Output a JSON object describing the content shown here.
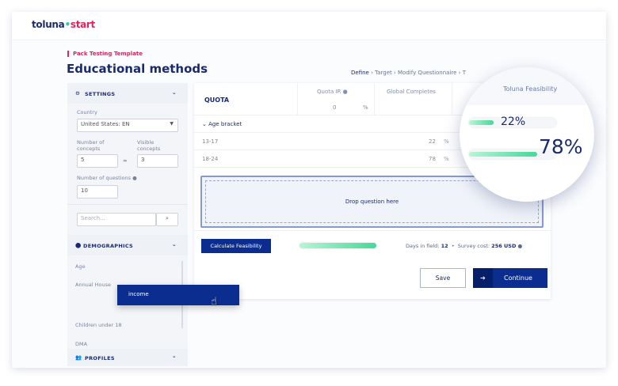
{
  "header": {
    "logo_left": "toluna",
    "logo_right": "start"
  },
  "page": {
    "template": "Pack Testing Template",
    "title": "Educational methods"
  },
  "steps": [
    "Define",
    "Target",
    "Modify Questionnaire",
    "T"
  ],
  "settings": {
    "heading": "SETTINGS",
    "country_label": "Country",
    "country_value": "United States: EN",
    "num_concepts_label": "Number of concepts",
    "num_concepts_value": "5",
    "visible_concepts_label": "Visible concepts",
    "visible_concepts_value": "3",
    "num_questions_label": "Number of questions",
    "num_questions_value": "10"
  },
  "search": {
    "placeholder": "Search..."
  },
  "demographics": {
    "heading": "DEMOGRAPHICS",
    "items": [
      "Age",
      "Annual House",
      "Children under 18",
      "DMA"
    ]
  },
  "profiles": {
    "heading": "PROFILES"
  },
  "drag_item": "income",
  "quota": {
    "heading": "QUOTA",
    "col_ir": "Quota IR",
    "ir_value": "0",
    "pct": "%",
    "col_global": "Global Completes",
    "group": "Age bracket",
    "rows": [
      {
        "label": "13-17",
        "value": "22",
        "pct": "%",
        "fill": 0.22
      },
      {
        "label": "18-24",
        "value": "78",
        "pct": "%",
        "fill": 0.78
      }
    ]
  },
  "drop_zone": "Drop question here",
  "footer": {
    "calc_button": "Calculate Feasibility",
    "overall_fill": 1.0,
    "days_label": "Days in field:",
    "days_value": "12",
    "cost_label": "Survey cost:",
    "cost_value": "256 USD"
  },
  "actions": {
    "save": "Save",
    "continue": "Continue"
  },
  "magnifier": {
    "title": "Toluna Feasibility",
    "values": [
      {
        "label": "22%",
        "fill": 0.22
      },
      {
        "label": "78%",
        "fill": 0.78
      }
    ]
  },
  "colors": {
    "brand_navy": "#0a2d8f",
    "brand_pink": "#e0245e",
    "bar_green": "#45d89a"
  }
}
